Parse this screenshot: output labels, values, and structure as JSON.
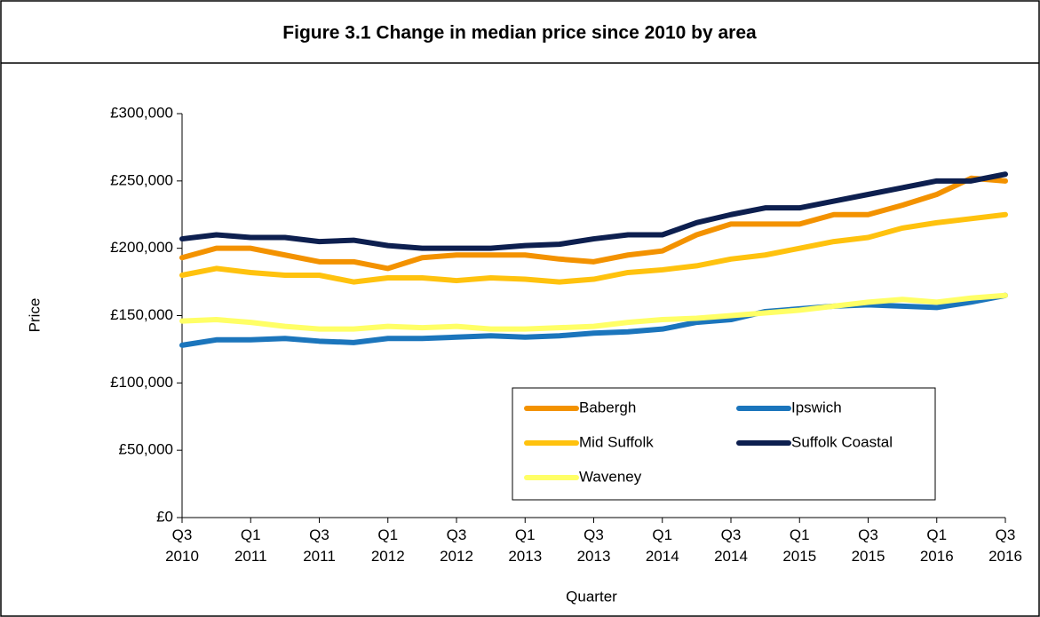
{
  "chart_data": {
    "type": "line",
    "title": "Figure 3.1 Change in median price since 2010 by area",
    "y_label": "Price",
    "x_label": "Quarter",
    "categories": [
      "Q3 2010",
      null,
      "Q1 2011",
      null,
      "Q3 2011",
      null,
      "Q1 2012",
      null,
      "Q3 2012",
      null,
      "Q1 2013",
      null,
      "Q3 2013",
      null,
      "Q1 2014",
      null,
      "Q3 2014",
      null,
      "Q1 2015",
      null,
      "Q3 2015",
      null,
      "Q1 2016",
      null,
      "Q3 2016"
    ],
    "ylim": [
      0,
      300000
    ],
    "yticks": [
      {
        "value": 0,
        "label": "£0"
      },
      {
        "value": 50000,
        "label": "£50,000"
      },
      {
        "value": 100000,
        "label": "£100,000"
      },
      {
        "value": 150000,
        "label": "£150,000"
      },
      {
        "value": 200000,
        "label": "£200,000"
      },
      {
        "value": 250000,
        "label": "£250,000"
      },
      {
        "value": 300000,
        "label": "£300,000"
      }
    ],
    "grid": false,
    "legend": "bottom-right",
    "series": [
      {
        "name": "Babergh",
        "color": "#f39200",
        "values": [
          193000,
          200000,
          200000,
          195000,
          190000,
          190000,
          185000,
          193000,
          195000,
          195000,
          195000,
          192000,
          190000,
          195000,
          198000,
          210000,
          218000,
          218000,
          218000,
          225000,
          225000,
          232000,
          240000,
          252000,
          250000
        ]
      },
      {
        "name": "Ipswich",
        "color": "#1b75bc",
        "values": [
          128000,
          132000,
          132000,
          133000,
          131000,
          130000,
          133000,
          133000,
          134000,
          135000,
          134000,
          135000,
          137000,
          138000,
          140000,
          145000,
          147000,
          153000,
          155000,
          157000,
          158000,
          157000,
          156000,
          160000,
          165000
        ]
      },
      {
        "name": "Mid Suffolk",
        "color": "#ffc20e",
        "values": [
          180000,
          185000,
          182000,
          180000,
          180000,
          175000,
          178000,
          178000,
          176000,
          178000,
          177000,
          175000,
          177000,
          182000,
          184000,
          187000,
          192000,
          195000,
          200000,
          205000,
          208000,
          215000,
          219000,
          222000,
          225000
        ]
      },
      {
        "name": "Suffolk Coastal",
        "color": "#0d1f4f",
        "values": [
          207000,
          210000,
          208000,
          208000,
          205000,
          206000,
          202000,
          200000,
          200000,
          200000,
          202000,
          203000,
          207000,
          210000,
          210000,
          219000,
          225000,
          230000,
          230000,
          235000,
          240000,
          245000,
          250000,
          250000,
          255000
        ]
      },
      {
        "name": "Waveney",
        "color": "#ffff66",
        "values": [
          146000,
          147000,
          145000,
          142000,
          140000,
          140000,
          142000,
          141000,
          142000,
          140000,
          140000,
          141000,
          142000,
          145000,
          147000,
          148000,
          150000,
          152000,
          154000,
          157000,
          160000,
          162000,
          160000,
          163000,
          165000
        ]
      }
    ]
  }
}
